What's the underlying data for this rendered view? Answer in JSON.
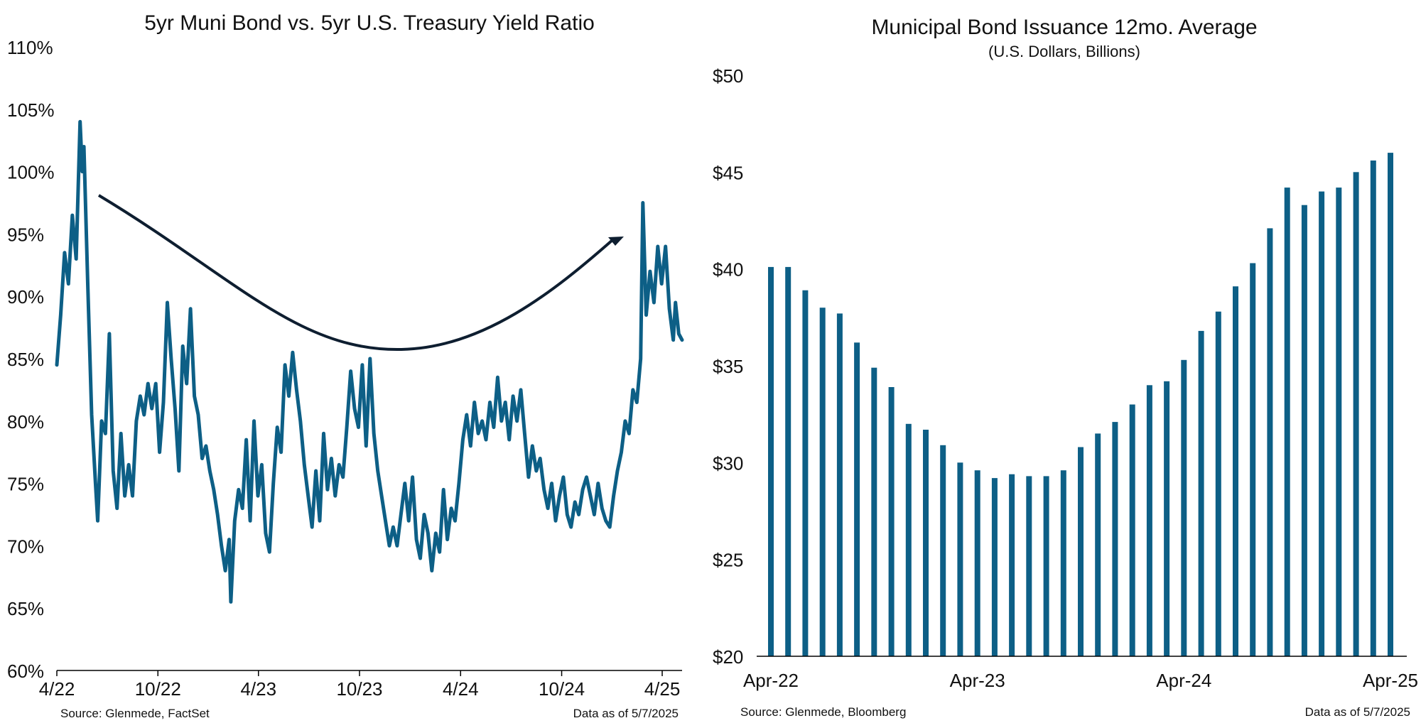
{
  "colors": {
    "series": "#0d5f86",
    "arrow": "#0e1e30",
    "text": "#111111"
  },
  "chart_data": [
    {
      "type": "line",
      "title": "5yr Muni Bond vs. 5yr U.S. Treasury Yield Ratio",
      "xlabel": "",
      "ylabel": "",
      "ylim": [
        60,
        110
      ],
      "y_tick_labels": [
        "60%",
        "65%",
        "70%",
        "75%",
        "80%",
        "85%",
        "90%",
        "95%",
        "100%",
        "105%",
        "110%"
      ],
      "x_tick_labels": [
        "4/22",
        "10/22",
        "4/23",
        "10/23",
        "4/24",
        "10/24",
        "4/25"
      ],
      "x_tick_dates": [
        "2022-04-01",
        "2022-10-01",
        "2023-04-01",
        "2023-10-01",
        "2024-04-01",
        "2024-10-01",
        "2025-04-01"
      ],
      "xlim": [
        "2022-04-01",
        "2025-05-07"
      ],
      "grid": false,
      "series": [
        {
          "points": [
            [
              "2022-04-01",
              84.5
            ],
            [
              "2022-04-08",
              88.5
            ],
            [
              "2022-04-15",
              93.5
            ],
            [
              "2022-04-22",
              91.0
            ],
            [
              "2022-04-29",
              96.5
            ],
            [
              "2022-05-06",
              93.0
            ],
            [
              "2022-05-13",
              104.0
            ],
            [
              "2022-05-17",
              100.0
            ],
            [
              "2022-05-20",
              102.0
            ],
            [
              "2022-05-27",
              91.0
            ],
            [
              "2022-06-03",
              80.5
            ],
            [
              "2022-06-10",
              75.0
            ],
            [
              "2022-06-14",
              72.0
            ],
            [
              "2022-06-21",
              80.0
            ],
            [
              "2022-06-28",
              79.0
            ],
            [
              "2022-07-05",
              87.0
            ],
            [
              "2022-07-12",
              76.0
            ],
            [
              "2022-07-19",
              73.0
            ],
            [
              "2022-07-26",
              79.0
            ],
            [
              "2022-08-02",
              74.0
            ],
            [
              "2022-08-09",
              76.5
            ],
            [
              "2022-08-16",
              74.0
            ],
            [
              "2022-08-23",
              80.0
            ],
            [
              "2022-08-30",
              82.0
            ],
            [
              "2022-09-06",
              80.5
            ],
            [
              "2022-09-13",
              83.0
            ],
            [
              "2022-09-20",
              81.0
            ],
            [
              "2022-09-27",
              83.0
            ],
            [
              "2022-10-04",
              77.5
            ],
            [
              "2022-10-11",
              81.5
            ],
            [
              "2022-10-18",
              89.5
            ],
            [
              "2022-10-25",
              85.0
            ],
            [
              "2022-11-01",
              81.0
            ],
            [
              "2022-11-08",
              76.0
            ],
            [
              "2022-11-15",
              86.0
            ],
            [
              "2022-11-22",
              83.0
            ],
            [
              "2022-11-29",
              89.0
            ],
            [
              "2022-12-06",
              82.0
            ],
            [
              "2022-12-13",
              80.5
            ],
            [
              "2022-12-20",
              77.0
            ],
            [
              "2022-12-27",
              78.0
            ],
            [
              "2023-01-03",
              76.0
            ],
            [
              "2023-01-10",
              74.5
            ],
            [
              "2023-01-17",
              72.5
            ],
            [
              "2023-01-24",
              70.0
            ],
            [
              "2023-01-31",
              68.0
            ],
            [
              "2023-02-07",
              70.5
            ],
            [
              "2023-02-10",
              65.5
            ],
            [
              "2023-02-17",
              72.0
            ],
            [
              "2023-02-24",
              74.5
            ],
            [
              "2023-03-03",
              73.0
            ],
            [
              "2023-03-10",
              78.5
            ],
            [
              "2023-03-17",
              72.0
            ],
            [
              "2023-03-24",
              80.0
            ],
            [
              "2023-03-31",
              74.0
            ],
            [
              "2023-04-07",
              76.5
            ],
            [
              "2023-04-14",
              71.0
            ],
            [
              "2023-04-21",
              69.5
            ],
            [
              "2023-04-28",
              75.0
            ],
            [
              "2023-05-05",
              79.5
            ],
            [
              "2023-05-12",
              77.5
            ],
            [
              "2023-05-19",
              84.5
            ],
            [
              "2023-05-26",
              82.0
            ],
            [
              "2023-06-02",
              85.5
            ],
            [
              "2023-06-09",
              82.5
            ],
            [
              "2023-06-16",
              80.0
            ],
            [
              "2023-06-23",
              76.5
            ],
            [
              "2023-06-30",
              74.0
            ],
            [
              "2023-07-07",
              71.5
            ],
            [
              "2023-07-14",
              76.0
            ],
            [
              "2023-07-21",
              72.0
            ],
            [
              "2023-07-28",
              79.0
            ],
            [
              "2023-08-04",
              74.5
            ],
            [
              "2023-08-11",
              77.0
            ],
            [
              "2023-08-18",
              74.0
            ],
            [
              "2023-08-25",
              76.5
            ],
            [
              "2023-09-01",
              75.5
            ],
            [
              "2023-09-08",
              79.5
            ],
            [
              "2023-09-15",
              84.0
            ],
            [
              "2023-09-22",
              81.0
            ],
            [
              "2023-09-29",
              79.5
            ],
            [
              "2023-10-06",
              84.5
            ],
            [
              "2023-10-13",
              78.0
            ],
            [
              "2023-10-20",
              85.0
            ],
            [
              "2023-10-27",
              79.0
            ],
            [
              "2023-11-03",
              76.0
            ],
            [
              "2023-11-10",
              74.0
            ],
            [
              "2023-11-17",
              72.0
            ],
            [
              "2023-11-24",
              70.0
            ],
            [
              "2023-12-01",
              71.5
            ],
            [
              "2023-12-08",
              70.0
            ],
            [
              "2023-12-15",
              72.5
            ],
            [
              "2023-12-22",
              75.0
            ],
            [
              "2023-12-29",
              72.0
            ],
            [
              "2024-01-05",
              75.5
            ],
            [
              "2024-01-12",
              70.5
            ],
            [
              "2024-01-19",
              69.0
            ],
            [
              "2024-01-26",
              72.5
            ],
            [
              "2024-02-02",
              71.0
            ],
            [
              "2024-02-09",
              68.0
            ],
            [
              "2024-02-16",
              71.0
            ],
            [
              "2024-02-23",
              69.5
            ],
            [
              "2024-03-01",
              74.5
            ],
            [
              "2024-03-08",
              70.5
            ],
            [
              "2024-03-15",
              73.0
            ],
            [
              "2024-03-22",
              72.0
            ],
            [
              "2024-03-29",
              75.0
            ],
            [
              "2024-04-05",
              78.5
            ],
            [
              "2024-04-12",
              80.5
            ],
            [
              "2024-04-19",
              78.0
            ],
            [
              "2024-04-26",
              81.5
            ],
            [
              "2024-05-03",
              79.0
            ],
            [
              "2024-05-10",
              80.0
            ],
            [
              "2024-05-17",
              78.5
            ],
            [
              "2024-05-24",
              81.5
            ],
            [
              "2024-05-31",
              79.5
            ],
            [
              "2024-06-07",
              83.5
            ],
            [
              "2024-06-14",
              80.0
            ],
            [
              "2024-06-21",
              81.5
            ],
            [
              "2024-06-28",
              78.5
            ],
            [
              "2024-07-05",
              82.0
            ],
            [
              "2024-07-12",
              80.0
            ],
            [
              "2024-07-19",
              82.5
            ],
            [
              "2024-07-26",
              79.0
            ],
            [
              "2024-08-02",
              75.5
            ],
            [
              "2024-08-09",
              78.0
            ],
            [
              "2024-08-16",
              76.0
            ],
            [
              "2024-08-23",
              77.0
            ],
            [
              "2024-08-30",
              74.5
            ],
            [
              "2024-09-06",
              73.0
            ],
            [
              "2024-09-13",
              75.0
            ],
            [
              "2024-09-20",
              72.0
            ],
            [
              "2024-09-27",
              74.0
            ],
            [
              "2024-10-04",
              75.5
            ],
            [
              "2024-10-11",
              72.5
            ],
            [
              "2024-10-18",
              71.5
            ],
            [
              "2024-10-25",
              73.5
            ],
            [
              "2024-11-01",
              72.5
            ],
            [
              "2024-11-08",
              74.5
            ],
            [
              "2024-11-15",
              75.5
            ],
            [
              "2024-11-22",
              74.0
            ],
            [
              "2024-11-29",
              72.5
            ],
            [
              "2024-12-06",
              75.0
            ],
            [
              "2024-12-13",
              73.0
            ],
            [
              "2024-12-20",
              72.0
            ],
            [
              "2024-12-27",
              71.5
            ],
            [
              "2025-01-03",
              74.0
            ],
            [
              "2025-01-10",
              76.0
            ],
            [
              "2025-01-17",
              77.5
            ],
            [
              "2025-01-24",
              80.0
            ],
            [
              "2025-01-31",
              79.0
            ],
            [
              "2025-02-07",
              82.5
            ],
            [
              "2025-02-14",
              81.5
            ],
            [
              "2025-02-21",
              85.0
            ],
            [
              "2025-02-25",
              97.5
            ],
            [
              "2025-03-03",
              88.5
            ],
            [
              "2025-03-10",
              92.0
            ],
            [
              "2025-03-17",
              89.5
            ],
            [
              "2025-03-24",
              94.0
            ],
            [
              "2025-03-31",
              91.0
            ],
            [
              "2025-04-07",
              94.0
            ],
            [
              "2025-04-14",
              89.0
            ],
            [
              "2025-04-21",
              86.5
            ],
            [
              "2025-04-25",
              89.5
            ],
            [
              "2025-05-01",
              87.0
            ],
            [
              "2025-05-07",
              86.5
            ]
          ]
        }
      ],
      "annotation": {
        "type": "curved-arrow",
        "direction": "down-then-up"
      },
      "source": "Source: Glenmede, FactSet",
      "data_as_of": "Data as of 5/7/2025"
    },
    {
      "type": "bar",
      "title": "Municipal Bond Issuance 12mo. Average",
      "subtitle": "(U.S. Dollars, Billions)",
      "xlabel": "",
      "ylabel": "",
      "ylim": [
        20,
        50
      ],
      "y_tick_labels": [
        "$20",
        "$25",
        "$30",
        "$35",
        "$40",
        "$45",
        "$50"
      ],
      "categories": [
        "Apr-22",
        "May-22",
        "Jun-22",
        "Jul-22",
        "Aug-22",
        "Sep-22",
        "Oct-22",
        "Nov-22",
        "Dec-22",
        "Jan-23",
        "Feb-23",
        "Mar-23",
        "Apr-23",
        "May-23",
        "Jun-23",
        "Jul-23",
        "Aug-23",
        "Sep-23",
        "Oct-23",
        "Nov-23",
        "Dec-23",
        "Jan-24",
        "Feb-24",
        "Mar-24",
        "Apr-24",
        "May-24",
        "Jun-24",
        "Jul-24",
        "Aug-24",
        "Sep-24",
        "Oct-24",
        "Nov-24",
        "Dec-24",
        "Jan-25",
        "Feb-25",
        "Mar-25",
        "Apr-25"
      ],
      "x_tick_labels": [
        "Apr-22",
        "Apr-23",
        "Apr-24",
        "Apr-25"
      ],
      "series": [
        {
          "values": [
            40.1,
            40.1,
            38.9,
            38.0,
            37.7,
            36.2,
            34.9,
            33.9,
            32.0,
            31.7,
            30.9,
            30.0,
            29.6,
            29.2,
            29.4,
            29.3,
            29.3,
            29.6,
            30.8,
            31.5,
            32.1,
            33.0,
            34.0,
            34.2,
            35.3,
            36.8,
            37.8,
            39.1,
            40.3,
            42.1,
            44.2,
            43.3,
            44.0,
            44.2,
            45.0,
            45.6,
            46.0
          ]
        }
      ],
      "source": "Source: Glenmede, Bloomberg",
      "data_as_of": "Data as of 5/7/2025"
    }
  ]
}
